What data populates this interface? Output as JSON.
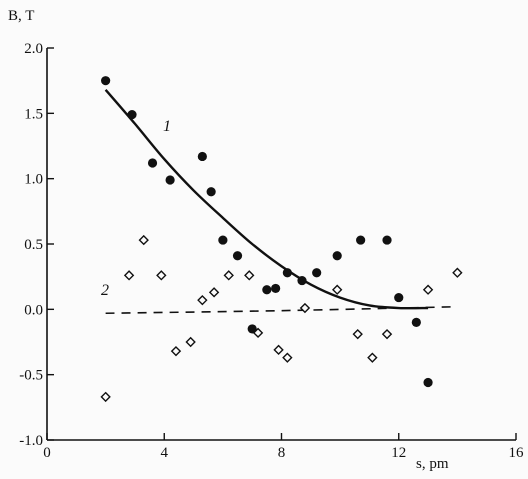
{
  "chart_data": {
    "type": "scatter",
    "title": "",
    "xlabel": "s, pm",
    "ylabel": "B, T",
    "xlim": [
      0,
      16
    ],
    "ylim": [
      -1.0,
      2.0
    ],
    "x_ticks": [
      0,
      4,
      8,
      12,
      16
    ],
    "y_ticks": [
      -1.0,
      -0.5,
      0.0,
      0.5,
      1.0,
      1.5,
      2.0
    ],
    "x_tick_labels": [
      "0",
      "4",
      "8",
      "12",
      "16"
    ],
    "y_tick_labels": [
      "-1.0",
      "-0.5",
      "0.0",
      "0.5",
      "1.0",
      "1.5",
      "2.0"
    ],
    "grid": false,
    "series": [
      {
        "name": "",
        "marker": "filled-circle",
        "color": "#111111",
        "points": [
          [
            2.0,
            1.75
          ],
          [
            2.9,
            1.49
          ],
          [
            3.6,
            1.12
          ],
          [
            4.2,
            0.99
          ],
          [
            5.3,
            1.17
          ],
          [
            5.6,
            0.9
          ],
          [
            6.0,
            0.53
          ],
          [
            6.5,
            0.41
          ],
          [
            7.0,
            -0.15
          ],
          [
            7.5,
            0.15
          ],
          [
            7.8,
            0.16
          ],
          [
            8.2,
            0.28
          ],
          [
            8.7,
            0.22
          ],
          [
            9.2,
            0.28
          ],
          [
            9.9,
            0.41
          ],
          [
            10.7,
            0.53
          ],
          [
            11.6,
            0.53
          ],
          [
            12.0,
            0.09
          ],
          [
            12.6,
            -0.1
          ],
          [
            13.0,
            -0.56
          ]
        ]
      },
      {
        "name": "",
        "marker": "open-diamond",
        "color": "#111111",
        "points": [
          [
            2.0,
            -0.67
          ],
          [
            2.8,
            0.26
          ],
          [
            3.3,
            0.53
          ],
          [
            3.9,
            0.26
          ],
          [
            4.4,
            -0.32
          ],
          [
            4.9,
            -0.25
          ],
          [
            5.3,
            0.07
          ],
          [
            5.7,
            0.13
          ],
          [
            6.2,
            0.26
          ],
          [
            6.9,
            0.26
          ],
          [
            7.2,
            -0.18
          ],
          [
            7.9,
            -0.31
          ],
          [
            8.2,
            -0.37
          ],
          [
            8.8,
            0.01
          ],
          [
            9.9,
            0.15
          ],
          [
            10.6,
            -0.19
          ],
          [
            11.1,
            -0.37
          ],
          [
            11.6,
            -0.19
          ],
          [
            13.0,
            0.15
          ],
          [
            14.0,
            0.28
          ]
        ]
      }
    ],
    "curves": [
      {
        "label": "1",
        "style": "solid",
        "points": [
          [
            2.0,
            1.68
          ],
          [
            3.0,
            1.42
          ],
          [
            4.0,
            1.15
          ],
          [
            5.0,
            0.91
          ],
          [
            6.0,
            0.7
          ],
          [
            7.0,
            0.5
          ],
          [
            8.0,
            0.33
          ],
          [
            9.0,
            0.19
          ],
          [
            10.0,
            0.09
          ],
          [
            11.0,
            0.03
          ],
          [
            12.0,
            0.01
          ],
          [
            13.0,
            0.01
          ]
        ]
      },
      {
        "label": "2",
        "style": "dashed",
        "points": [
          [
            2.0,
            -0.03
          ],
          [
            8.0,
            -0.01
          ],
          [
            14.0,
            0.02
          ]
        ]
      }
    ]
  }
}
